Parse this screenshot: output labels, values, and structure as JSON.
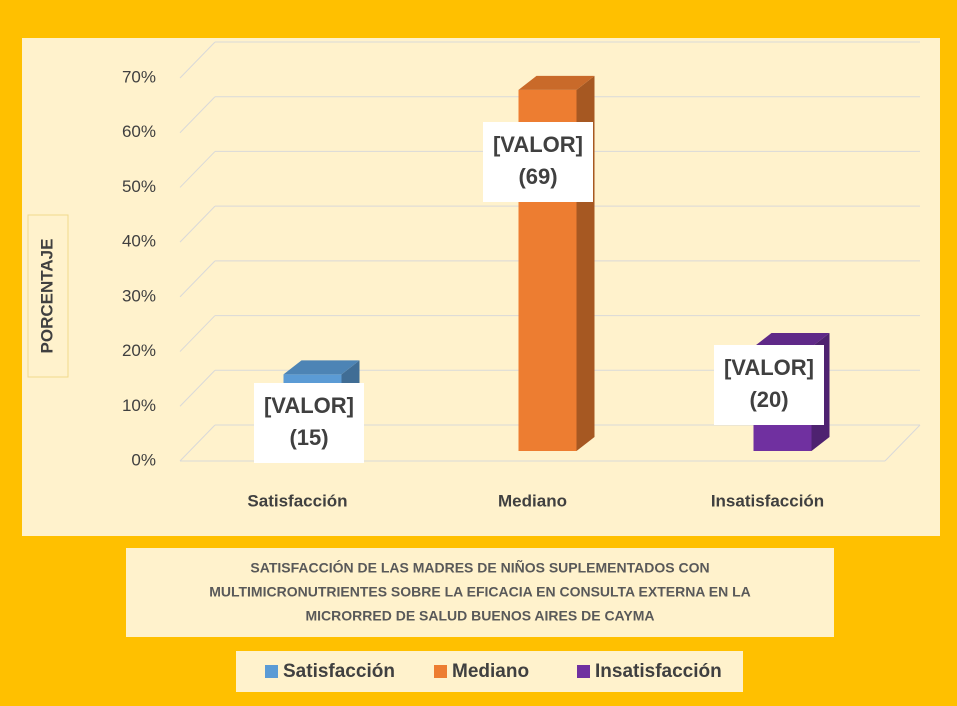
{
  "chart_data": {
    "type": "bar3d",
    "title": [
      "SATISFACCIÓN DE LAS MADRES DE NIÑOS SUPLEMENTADOS CON",
      "MULTIMICRONUTRIENTES SOBRE LA  EFICACIA EN  CONSULTA EXTERNA  EN LA",
      "MICRORRED DE SALUD BUENOS AIRES DE CAYMA"
    ],
    "y_label": "PORCENTAJE",
    "categories": [
      "Satisfacción",
      "Mediano",
      "Insatisfacción"
    ],
    "series": [
      {
        "name": "Satisfacción",
        "color": "#5b9bd5"
      },
      {
        "name": "Mediano",
        "color": "#ed7d31"
      },
      {
        "name": "Insatisfacción",
        "color": "#7030a0"
      }
    ],
    "values": [
      14,
      66,
      19
    ],
    "data_labels": [
      {
        "text": "[VALOR]",
        "count": "(15)"
      },
      {
        "text": "[VALOR]",
        "count": "(69)"
      },
      {
        "text": "[VALOR]",
        "count": "(20)"
      }
    ],
    "ylim": [
      0,
      70
    ],
    "yticks": [
      {
        "value": 0,
        "label": "0%"
      },
      {
        "value": 10,
        "label": "10%"
      },
      {
        "value": 20,
        "label": "20%"
      },
      {
        "value": 30,
        "label": "30%"
      },
      {
        "value": 40,
        "label": "40%"
      },
      {
        "value": 50,
        "label": "50%"
      },
      {
        "value": 60,
        "label": "60%"
      },
      {
        "value": 70,
        "label": "70%"
      }
    ],
    "grid": true
  }
}
